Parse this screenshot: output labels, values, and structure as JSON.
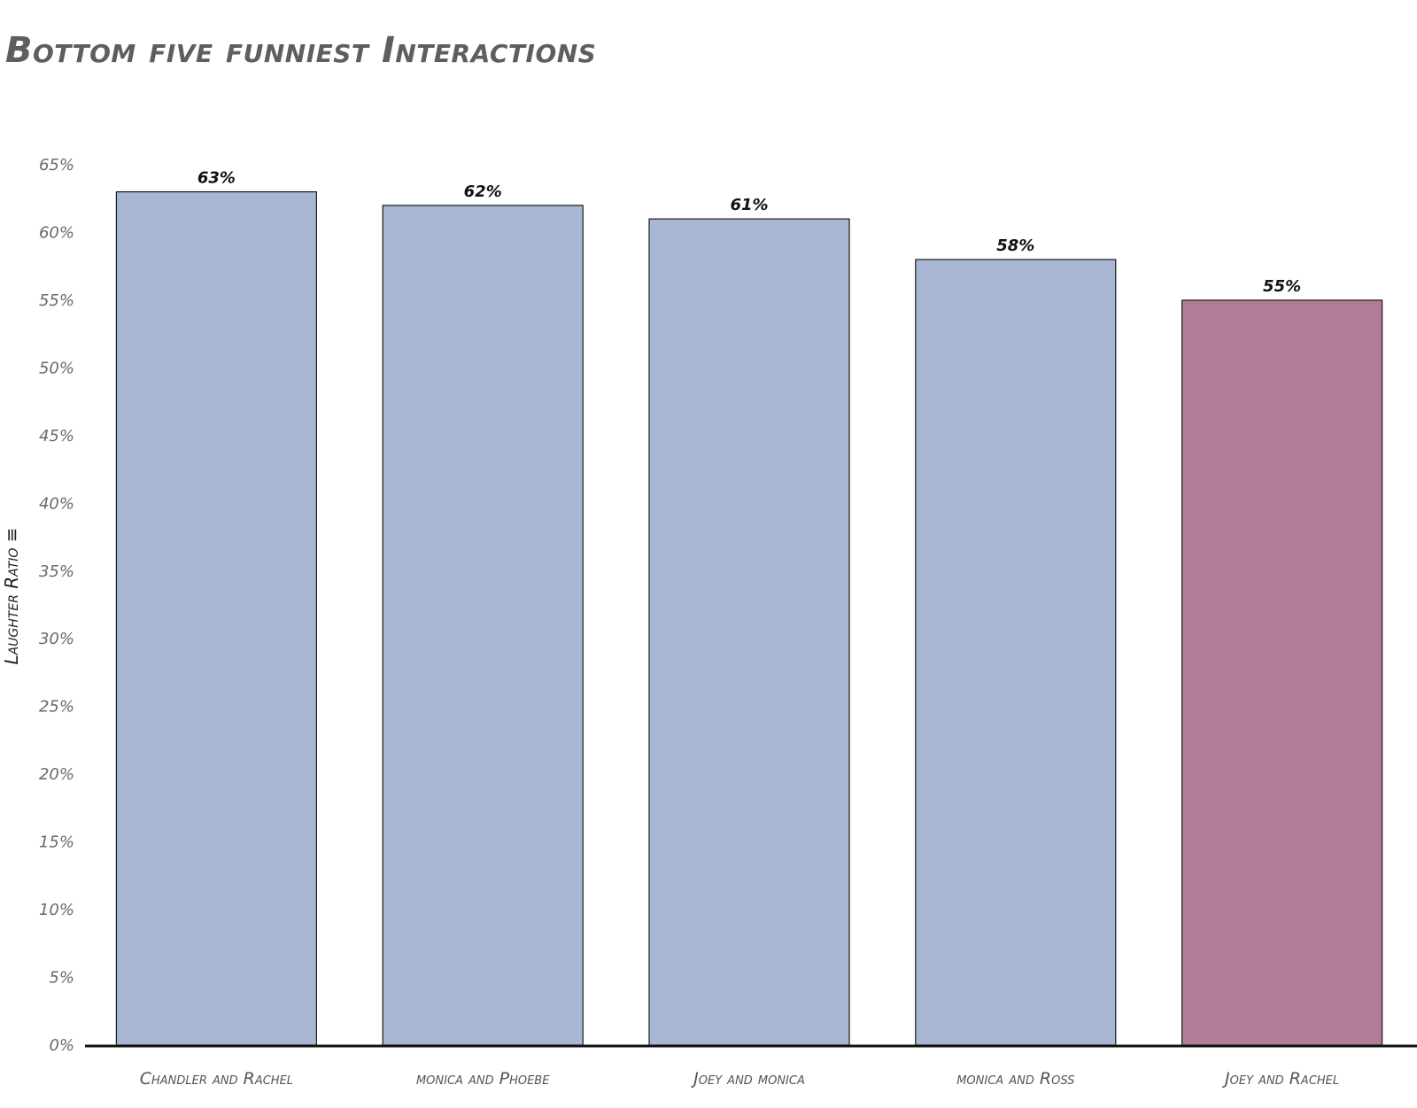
{
  "title": "Bottom five funniest Interactions",
  "chart_data": {
    "type": "bar",
    "title": "Bottom five funniest Interactions",
    "xlabel": "",
    "ylabel": "Laughter Ratio ≡",
    "ylim": [
      0,
      65
    ],
    "yticks": [
      0,
      5,
      10,
      15,
      20,
      25,
      30,
      35,
      40,
      45,
      50,
      55,
      60,
      65
    ],
    "ytick_suffix": "%",
    "grid": false,
    "categories": [
      "Chandler and Rachel",
      "monica and Phoebe",
      "Joey and monica",
      "monica and Ross",
      "Joey and Rachel"
    ],
    "values": [
      63,
      62,
      61,
      58,
      55
    ],
    "data_labels": [
      "63%",
      "62%",
      "61%",
      "58%",
      "55%"
    ],
    "bar_colors": [
      "#a7b7d1",
      "#a7b7d1",
      "#a7b7d1",
      "#a7b7d1",
      "#b07c96"
    ],
    "bar_edge_color": "#1a1a1a",
    "axis_color": "#111111"
  }
}
